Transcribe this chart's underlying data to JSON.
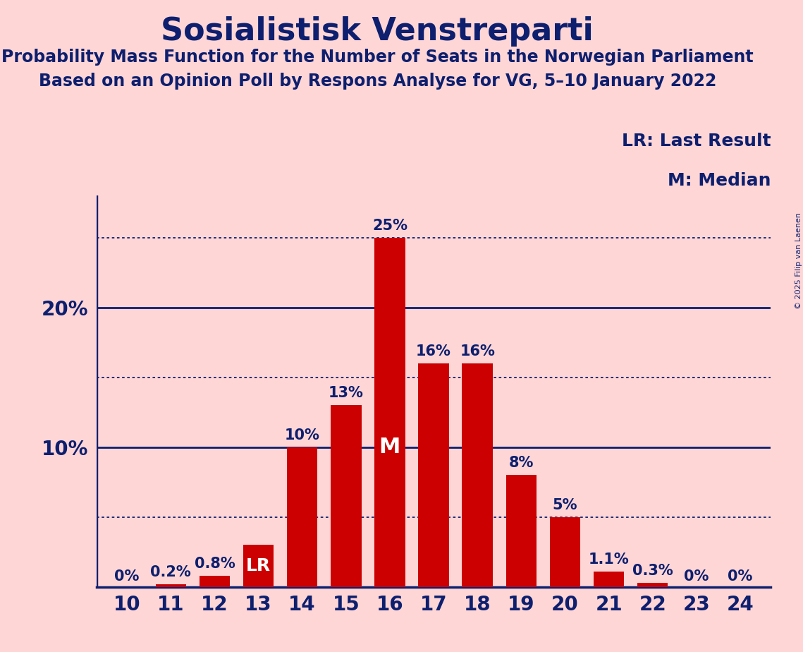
{
  "title": "Sosialistisk Venstreparti",
  "subtitle1": "Probability Mass Function for the Number of Seats in the Norwegian Parliament",
  "subtitle2": "Based on an Opinion Poll by Respons Analyse for VG, 5–10 January 2022",
  "copyright": "© 2025 Filip van Laenen",
  "seats": [
    10,
    11,
    12,
    13,
    14,
    15,
    16,
    17,
    18,
    19,
    20,
    21,
    22,
    23,
    24
  ],
  "probabilities": [
    0.0,
    0.2,
    0.8,
    3.0,
    10.0,
    13.0,
    25.0,
    16.0,
    16.0,
    8.0,
    5.0,
    1.1,
    0.3,
    0.0,
    0.0
  ],
  "labels": [
    "0%",
    "0.2%",
    "0.8%",
    "LR",
    "10%",
    "13%",
    "25%",
    "16%",
    "16%",
    "8%",
    "5%",
    "1.1%",
    "0.3%",
    "0%",
    "0%"
  ],
  "bar_color": "#CC0000",
  "background_color": "#FFD6D6",
  "text_color": "#0D1F6E",
  "lr_seat": 13,
  "median_seat": 16,
  "median_label": "M",
  "legend_lr": "LR: Last Result",
  "legend_m": "M: Median",
  "ylim": [
    0,
    28
  ],
  "dotted_lines": [
    5.0,
    15.0,
    25.0
  ],
  "solid_lines": [
    10.0,
    20.0
  ],
  "title_fontsize": 32,
  "subtitle_fontsize": 17,
  "tick_fontsize": 20,
  "bar_label_fontsize": 15,
  "legend_fontsize": 18,
  "ytick_positions": [
    10,
    20
  ],
  "ytick_labels": [
    "10%",
    "20%"
  ]
}
